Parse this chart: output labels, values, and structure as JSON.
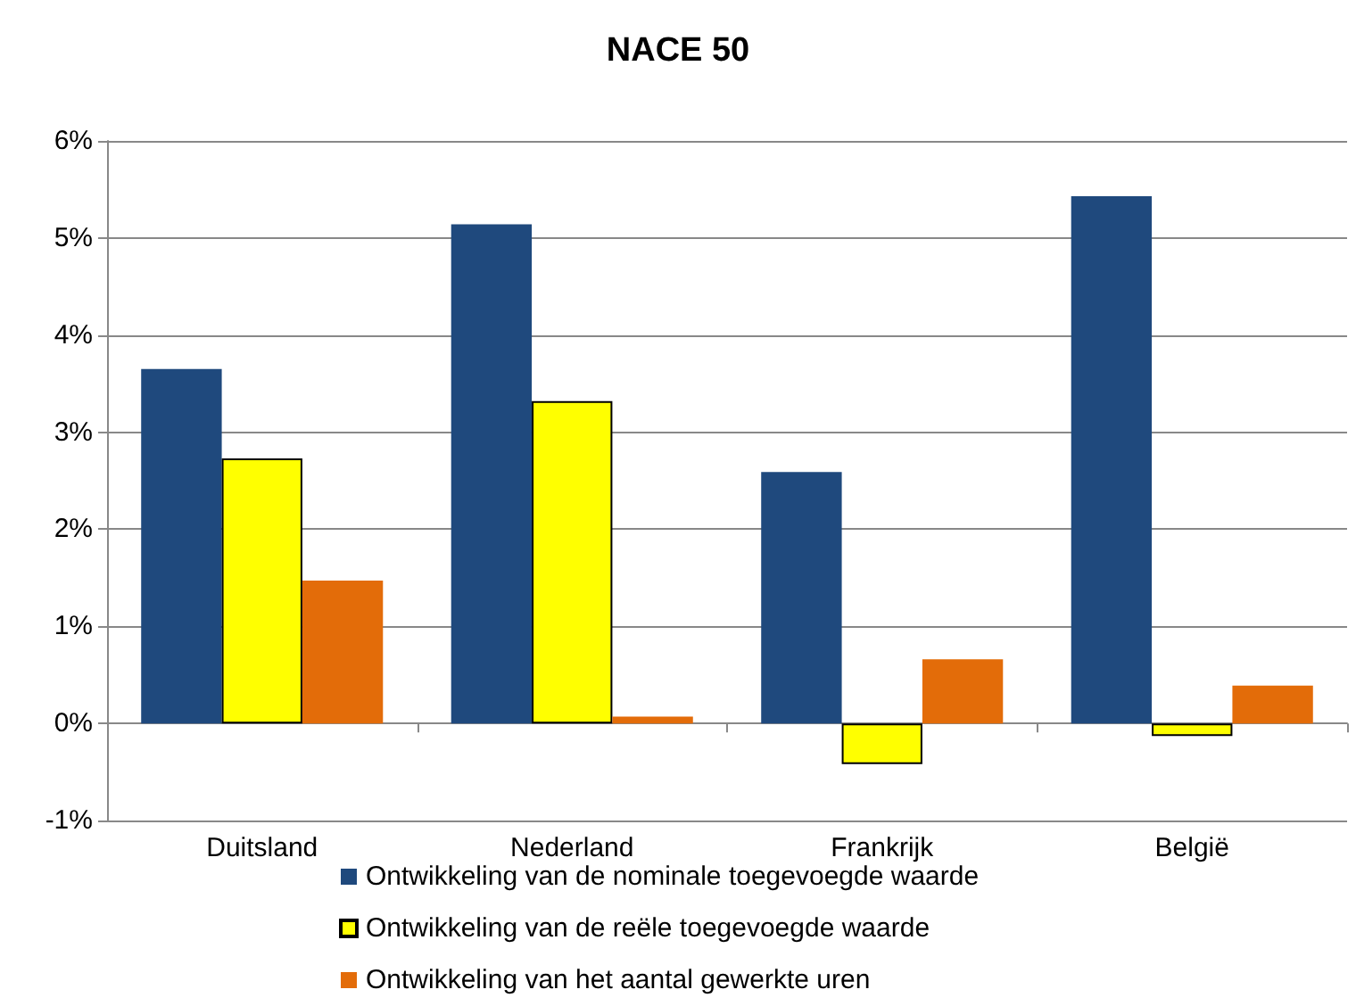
{
  "chart_data": {
    "type": "bar",
    "title": "NACE 50",
    "categories": [
      "Duitsland",
      "Nederland",
      "Frankrijk",
      "België"
    ],
    "series": [
      {
        "name": "Ontwikkeling van de nominale toegevoegde waarde",
        "color": "#1f497d",
        "values": [
          3.65,
          5.14,
          2.59,
          5.43
        ]
      },
      {
        "name": "Ontwikkeling van de reële toegevoegde waarde",
        "color": "#ffff00",
        "values": [
          2.73,
          3.32,
          -0.42,
          -0.13
        ]
      },
      {
        "name": "Ontwikkeling van het aantal gewerkte uren",
        "color": "#e36c09",
        "values": [
          1.47,
          0.07,
          0.66,
          0.39
        ]
      }
    ],
    "ylim": [
      -1,
      6
    ],
    "yticks": [
      {
        "value": -1,
        "label": "-1%"
      },
      {
        "value": 0,
        "label": "0%"
      },
      {
        "value": 1,
        "label": "1%"
      },
      {
        "value": 2,
        "label": "2%"
      },
      {
        "value": 3,
        "label": "3%"
      },
      {
        "value": 4,
        "label": "4%"
      },
      {
        "value": 5,
        "label": "5%"
      },
      {
        "value": 6,
        "label": "6%"
      }
    ],
    "grid": "y",
    "legend": "bottom"
  }
}
